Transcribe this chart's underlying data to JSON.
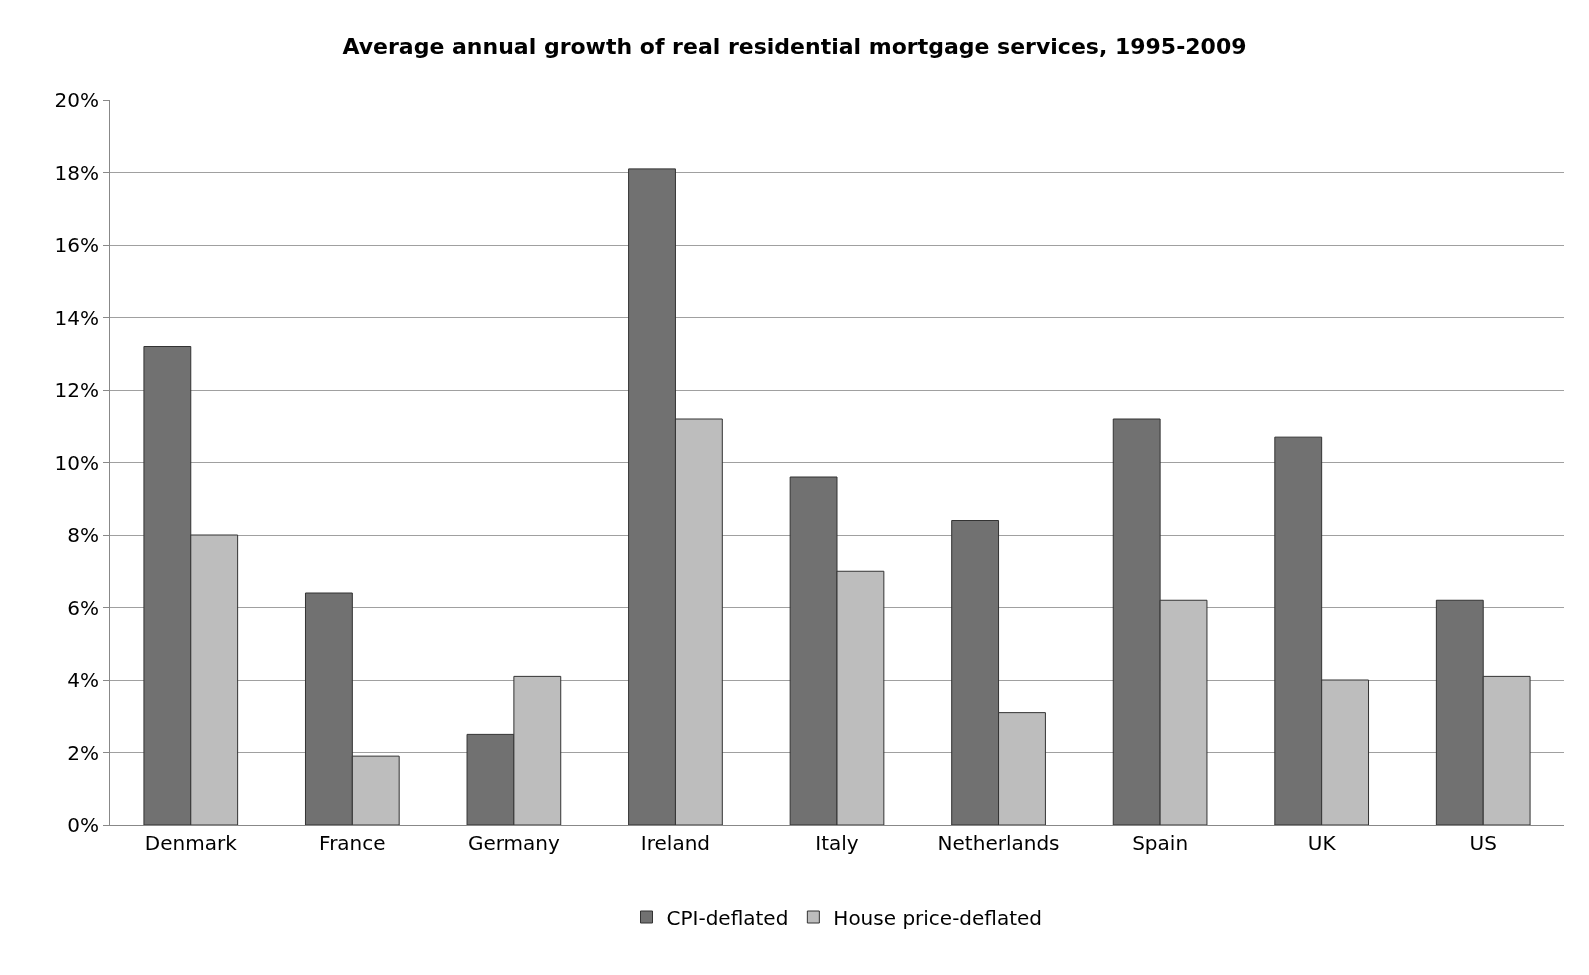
{
  "chart_data": {
    "type": "bar",
    "title": "Average annual growth of real residential mortgage services, 1995-2009",
    "categories": [
      "Denmark",
      "France",
      "Germany",
      "Ireland",
      "Italy",
      "Netherlands",
      "Spain",
      "UK",
      "US"
    ],
    "series": [
      {
        "name": "CPI-deflated",
        "color": "#717171",
        "values": [
          13.2,
          6.4,
          2.5,
          18.1,
          9.6,
          8.4,
          11.2,
          10.7,
          6.2
        ]
      },
      {
        "name": "House price-deflated",
        "color": "#bdbdbd",
        "values": [
          8.0,
          1.9,
          4.1,
          11.2,
          7.0,
          3.1,
          6.2,
          4.0,
          4.1
        ]
      }
    ],
    "ylim": [
      0,
      20
    ],
    "yticks": [
      {
        "value": 0,
        "label": "0%"
      },
      {
        "value": 2,
        "label": "2%"
      },
      {
        "value": 4,
        "label": "4%"
      },
      {
        "value": 6,
        "label": "6%"
      },
      {
        "value": 8,
        "label": "8%"
      },
      {
        "value": 10,
        "label": "10%"
      },
      {
        "value": 12,
        "label": "12%"
      },
      {
        "value": 14,
        "label": "14%"
      },
      {
        "value": 16,
        "label": "16%"
      },
      {
        "value": 18,
        "label": "18%"
      },
      {
        "value": 20,
        "label": "20%"
      }
    ],
    "grid": "y",
    "legend": "bottom"
  }
}
